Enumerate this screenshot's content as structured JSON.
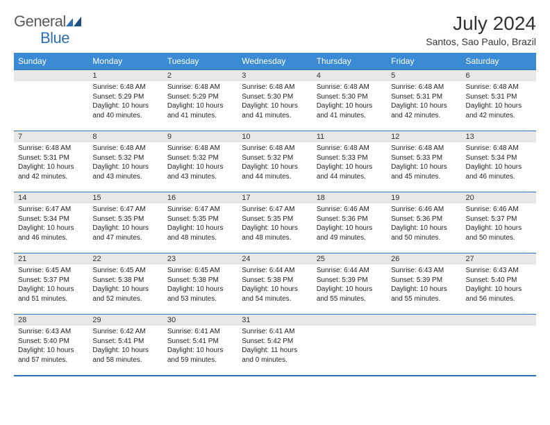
{
  "logo": {
    "general": "General",
    "blue": "Blue"
  },
  "title": "July 2024",
  "location": "Santos, Sao Paulo, Brazil",
  "colors": {
    "header_bg": "#3b8bd4",
    "header_text": "#ffffff",
    "border": "#2d6fb4",
    "daynum_bg": "#e8e8e8",
    "logo_gray": "#5a5a5a",
    "logo_blue": "#2d6fb4"
  },
  "weekdays": [
    "Sunday",
    "Monday",
    "Tuesday",
    "Wednesday",
    "Thursday",
    "Friday",
    "Saturday"
  ],
  "weeks": [
    [
      null,
      {
        "n": "1",
        "sr": "6:48 AM",
        "ss": "5:29 PM",
        "dl": "10 hours and 40 minutes."
      },
      {
        "n": "2",
        "sr": "6:48 AM",
        "ss": "5:29 PM",
        "dl": "10 hours and 41 minutes."
      },
      {
        "n": "3",
        "sr": "6:48 AM",
        "ss": "5:30 PM",
        "dl": "10 hours and 41 minutes."
      },
      {
        "n": "4",
        "sr": "6:48 AM",
        "ss": "5:30 PM",
        "dl": "10 hours and 41 minutes."
      },
      {
        "n": "5",
        "sr": "6:48 AM",
        "ss": "5:31 PM",
        "dl": "10 hours and 42 minutes."
      },
      {
        "n": "6",
        "sr": "6:48 AM",
        "ss": "5:31 PM",
        "dl": "10 hours and 42 minutes."
      }
    ],
    [
      {
        "n": "7",
        "sr": "6:48 AM",
        "ss": "5:31 PM",
        "dl": "10 hours and 42 minutes."
      },
      {
        "n": "8",
        "sr": "6:48 AM",
        "ss": "5:32 PM",
        "dl": "10 hours and 43 minutes."
      },
      {
        "n": "9",
        "sr": "6:48 AM",
        "ss": "5:32 PM",
        "dl": "10 hours and 43 minutes."
      },
      {
        "n": "10",
        "sr": "6:48 AM",
        "ss": "5:32 PM",
        "dl": "10 hours and 44 minutes."
      },
      {
        "n": "11",
        "sr": "6:48 AM",
        "ss": "5:33 PM",
        "dl": "10 hours and 44 minutes."
      },
      {
        "n": "12",
        "sr": "6:48 AM",
        "ss": "5:33 PM",
        "dl": "10 hours and 45 minutes."
      },
      {
        "n": "13",
        "sr": "6:48 AM",
        "ss": "5:34 PM",
        "dl": "10 hours and 46 minutes."
      }
    ],
    [
      {
        "n": "14",
        "sr": "6:47 AM",
        "ss": "5:34 PM",
        "dl": "10 hours and 46 minutes."
      },
      {
        "n": "15",
        "sr": "6:47 AM",
        "ss": "5:35 PM",
        "dl": "10 hours and 47 minutes."
      },
      {
        "n": "16",
        "sr": "6:47 AM",
        "ss": "5:35 PM",
        "dl": "10 hours and 48 minutes."
      },
      {
        "n": "17",
        "sr": "6:47 AM",
        "ss": "5:35 PM",
        "dl": "10 hours and 48 minutes."
      },
      {
        "n": "18",
        "sr": "6:46 AM",
        "ss": "5:36 PM",
        "dl": "10 hours and 49 minutes."
      },
      {
        "n": "19",
        "sr": "6:46 AM",
        "ss": "5:36 PM",
        "dl": "10 hours and 50 minutes."
      },
      {
        "n": "20",
        "sr": "6:46 AM",
        "ss": "5:37 PM",
        "dl": "10 hours and 50 minutes."
      }
    ],
    [
      {
        "n": "21",
        "sr": "6:45 AM",
        "ss": "5:37 PM",
        "dl": "10 hours and 51 minutes."
      },
      {
        "n": "22",
        "sr": "6:45 AM",
        "ss": "5:38 PM",
        "dl": "10 hours and 52 minutes."
      },
      {
        "n": "23",
        "sr": "6:45 AM",
        "ss": "5:38 PM",
        "dl": "10 hours and 53 minutes."
      },
      {
        "n": "24",
        "sr": "6:44 AM",
        "ss": "5:38 PM",
        "dl": "10 hours and 54 minutes."
      },
      {
        "n": "25",
        "sr": "6:44 AM",
        "ss": "5:39 PM",
        "dl": "10 hours and 55 minutes."
      },
      {
        "n": "26",
        "sr": "6:43 AM",
        "ss": "5:39 PM",
        "dl": "10 hours and 55 minutes."
      },
      {
        "n": "27",
        "sr": "6:43 AM",
        "ss": "5:40 PM",
        "dl": "10 hours and 56 minutes."
      }
    ],
    [
      {
        "n": "28",
        "sr": "6:43 AM",
        "ss": "5:40 PM",
        "dl": "10 hours and 57 minutes."
      },
      {
        "n": "29",
        "sr": "6:42 AM",
        "ss": "5:41 PM",
        "dl": "10 hours and 58 minutes."
      },
      {
        "n": "30",
        "sr": "6:41 AM",
        "ss": "5:41 PM",
        "dl": "10 hours and 59 minutes."
      },
      {
        "n": "31",
        "sr": "6:41 AM",
        "ss": "5:42 PM",
        "dl": "11 hours and 0 minutes."
      },
      null,
      null,
      null
    ]
  ],
  "labels": {
    "sunrise": "Sunrise:",
    "sunset": "Sunset:",
    "daylight": "Daylight:"
  }
}
